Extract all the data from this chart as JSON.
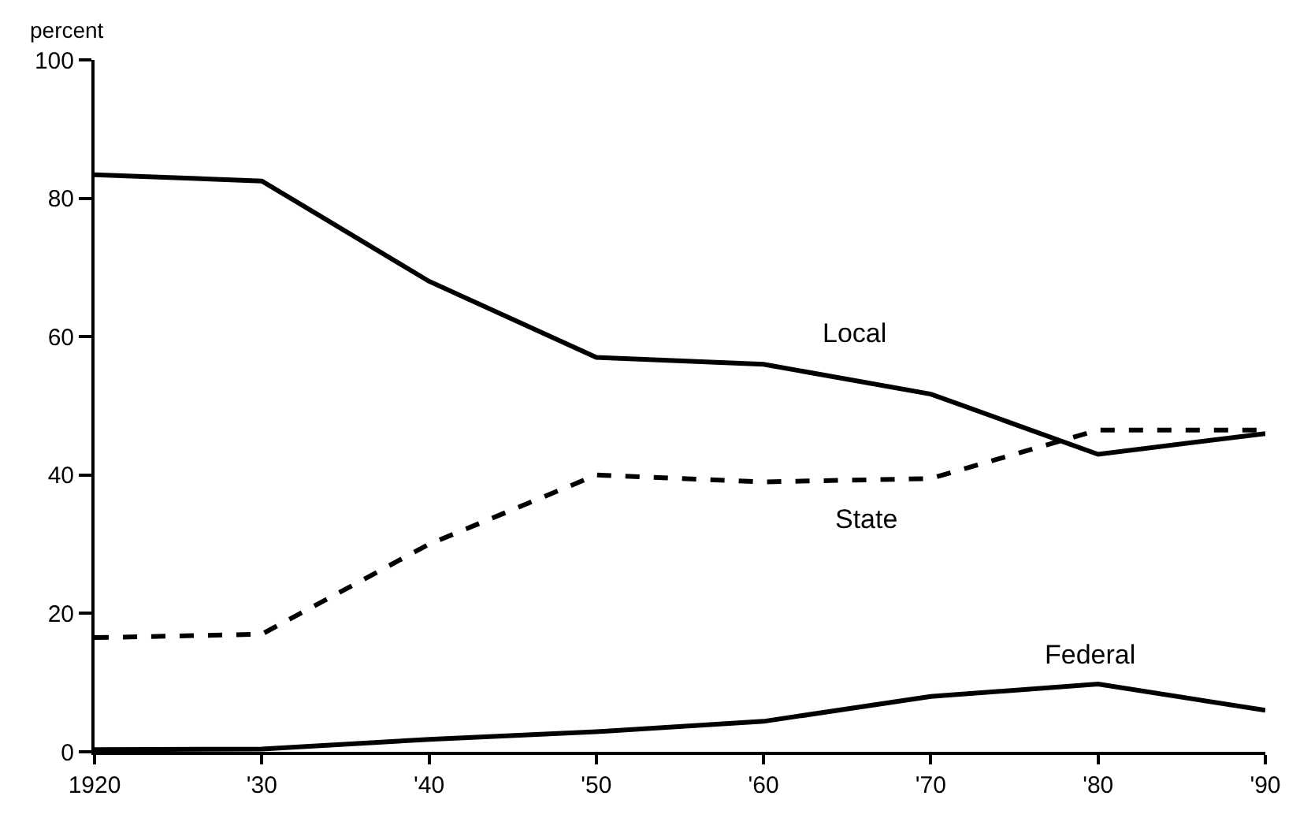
{
  "chart_data": {
    "type": "line",
    "ylabel": "percent",
    "x": [
      1920,
      1930,
      1940,
      1950,
      1960,
      1970,
      1980,
      1990
    ],
    "series": [
      {
        "name": "Local",
        "color": "#000000",
        "line_style": "solid",
        "values": [
          83.4,
          82.5,
          68,
          57,
          56,
          51.7,
          43,
          46
        ]
      },
      {
        "name": "State",
        "color": "#000000",
        "line_style": "dashed",
        "values": [
          16.5,
          17,
          30,
          40,
          39,
          39.5,
          46.5,
          46.5
        ]
      },
      {
        "name": "Federal",
        "color": "#000000",
        "line_style": "solid",
        "values": [
          0.3,
          0.4,
          1.8,
          2.9,
          4.4,
          8,
          9.8,
          6
        ]
      }
    ],
    "xlim": [
      1920,
      1990
    ],
    "xticks": [
      1920,
      {
        "value": 1930,
        "label": "'30"
      },
      {
        "value": 1940,
        "label": "'40"
      },
      {
        "value": 1950,
        "label": "'50"
      },
      {
        "value": 1960,
        "label": "'60"
      },
      {
        "value": 1970,
        "label": "'70"
      },
      {
        "value": 1980,
        "label": "'80"
      },
      {
        "value": 1990,
        "label": "'90"
      }
    ],
    "ylim": [
      0,
      100
    ],
    "yticks": [
      0,
      20,
      40,
      60,
      80,
      100
    ],
    "legend": false,
    "marker": "none"
  }
}
